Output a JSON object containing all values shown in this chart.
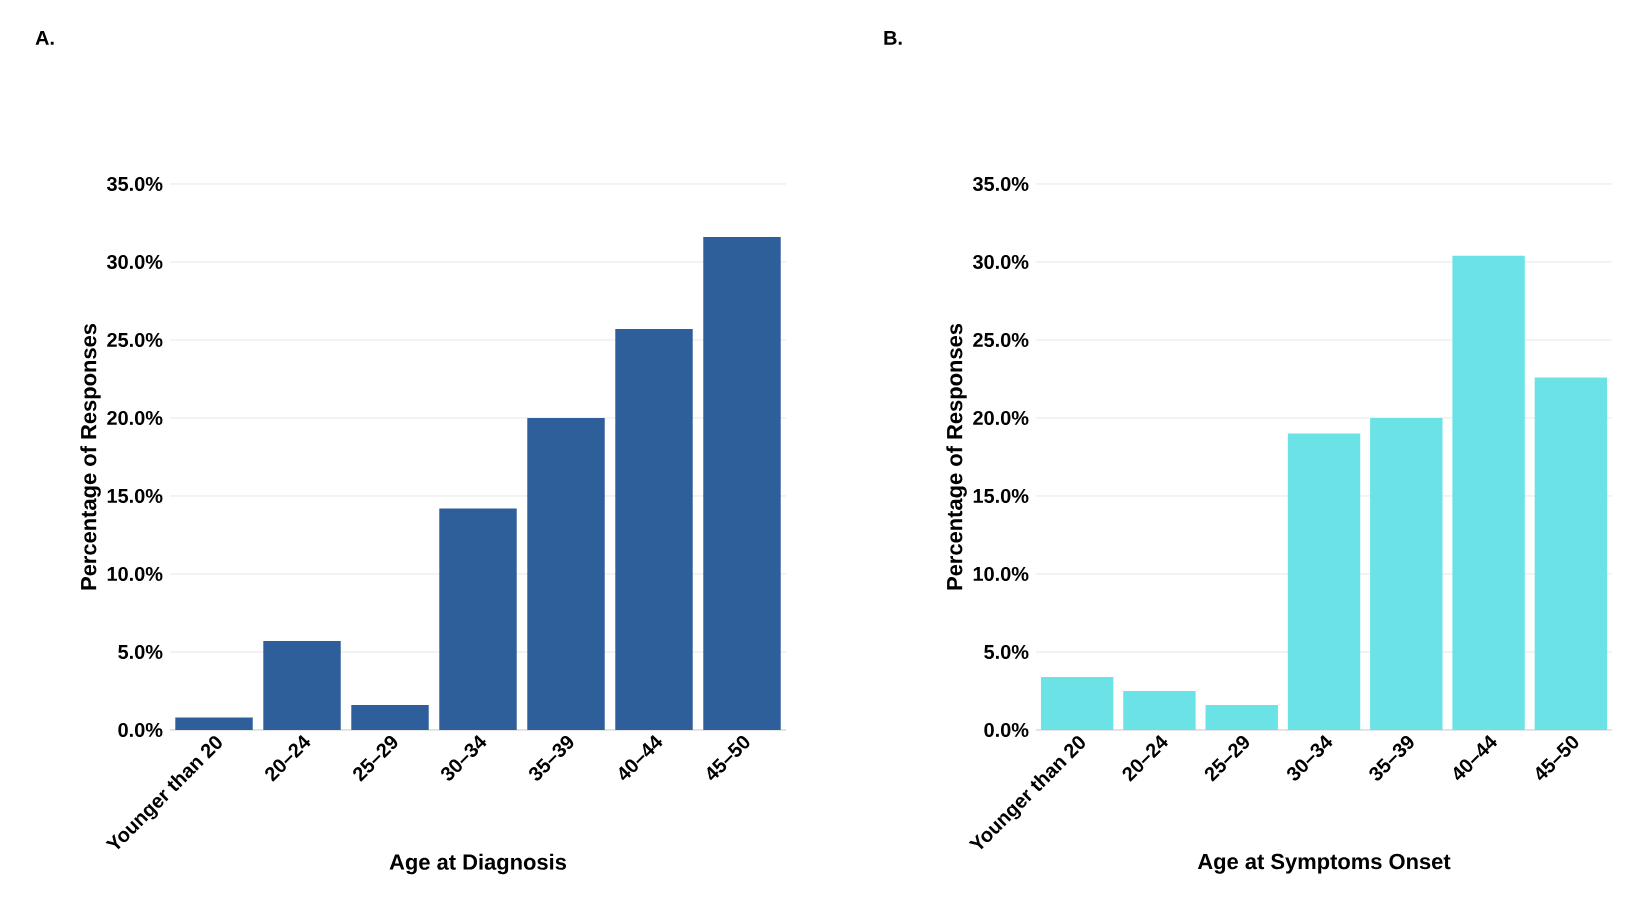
{
  "chart_data": [
    {
      "type": "bar",
      "title": "A.",
      "xlabel": "Age at Diagnosis",
      "ylabel": "Percentage of Responses",
      "categories": [
        "Younger than 20",
        "20–24",
        "25–29",
        "30–34",
        "35–39",
        "40–44",
        "45–50"
      ],
      "values": [
        0.8,
        5.7,
        1.6,
        14.2,
        20.0,
        25.7,
        31.6
      ],
      "color": "#2e5f9a",
      "ylim": [
        0,
        35
      ],
      "yticks": [
        {
          "value": 0,
          "label": "0.0%"
        },
        {
          "value": 5,
          "label": "5.0%"
        },
        {
          "value": 10,
          "label": "10.0%"
        },
        {
          "value": 15,
          "label": "15.0%"
        },
        {
          "value": 20,
          "label": "20.0%"
        },
        {
          "value": 25,
          "label": "25.0%"
        },
        {
          "value": 30,
          "label": "30.0%"
        },
        {
          "value": 35,
          "label": "35.0%"
        }
      ],
      "grid": "y"
    },
    {
      "type": "bar",
      "title": "B.",
      "xlabel": "Age at Symptoms Onset",
      "ylabel": "Percentage of Responses",
      "categories": [
        "Younger than 20",
        "20–24",
        "25–29",
        "30–34",
        "35–39",
        "40–44",
        "45–50"
      ],
      "values": [
        3.4,
        2.5,
        1.6,
        19.0,
        20.0,
        30.4,
        22.6
      ],
      "color": "#6be3e6",
      "ylim": [
        0,
        35
      ],
      "yticks": [
        {
          "value": 0,
          "label": "0.0%"
        },
        {
          "value": 5,
          "label": "5.0%"
        },
        {
          "value": 10,
          "label": "10.0%"
        },
        {
          "value": 15,
          "label": "15.0%"
        },
        {
          "value": 20,
          "label": "20.0%"
        },
        {
          "value": 25,
          "label": "25.0%"
        },
        {
          "value": 30,
          "label": "30.0%"
        },
        {
          "value": 35,
          "label": "35.0%"
        }
      ],
      "grid": "y"
    }
  ]
}
